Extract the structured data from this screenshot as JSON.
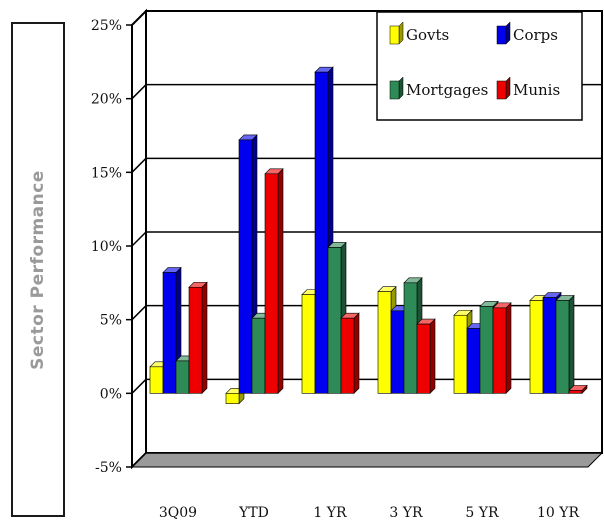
{
  "chart_data": {
    "type": "bar",
    "ylabel": "Sector Performance",
    "categories": [
      "3Q09",
      "YTD",
      "1 YR",
      "3 YR",
      "5 YR",
      "10 YR"
    ],
    "y_ticks": [
      "25%",
      "20%",
      "15%",
      "10%",
      "5%",
      "0%",
      "-5%"
    ],
    "ylim": [
      -5,
      25
    ],
    "legend_position": "top-right",
    "series": [
      {
        "name": "Govts",
        "color": "#ffff00",
        "values": [
          1.8,
          -0.7,
          6.7,
          6.9,
          5.3,
          6.3
        ]
      },
      {
        "name": "Corps",
        "color": "#0000ee",
        "values": [
          8.2,
          17.2,
          21.8,
          5.6,
          4.4,
          6.5
        ]
      },
      {
        "name": "Mortgages",
        "color": "#2e8b57",
        "values": [
          2.2,
          5.1,
          9.9,
          7.5,
          5.9,
          6.3
        ]
      },
      {
        "name": "Munis",
        "color": "#ee0000",
        "values": [
          7.2,
          14.9,
          5.1,
          4.7,
          5.8,
          0.2
        ]
      }
    ]
  }
}
